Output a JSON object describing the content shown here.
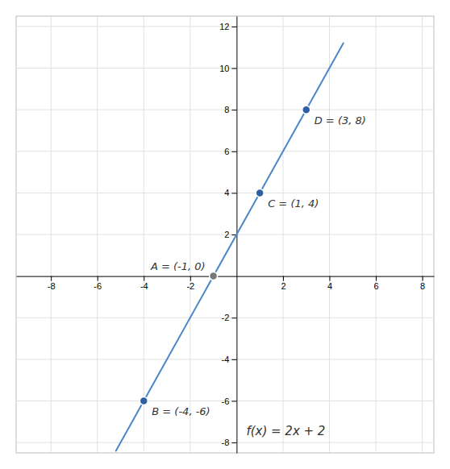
{
  "chart_data": {
    "type": "line",
    "xlim": [
      -9.5,
      8.5
    ],
    "ylim": [
      -8.5,
      12.5
    ],
    "xticks": [
      -8,
      -6,
      -4,
      -2,
      2,
      4,
      6,
      8
    ],
    "yticks": [
      -8,
      -6,
      -4,
      -2,
      2,
      4,
      6,
      8,
      10,
      12
    ],
    "grid": true,
    "series": [
      {
        "type": "line",
        "color": "#4a86c8",
        "x": [
          -5.2,
          4.6
        ],
        "values": [
          -8.4,
          11.2
        ]
      },
      {
        "type": "scatter",
        "colors": [
          "#2e5fa3",
          "#777777",
          "#2e5fa3",
          "#2e5fa3"
        ],
        "x": [
          -4,
          -1,
          1,
          3
        ],
        "values": [
          -6,
          0,
          4,
          8
        ],
        "value_labels": [
          "B = (-4, -6)",
          "A = (-1, 0)",
          "C = (1, 4)",
          "D = (3, 8)"
        ]
      }
    ],
    "annotations": [
      "f(x) = 2x + 2"
    ]
  }
}
